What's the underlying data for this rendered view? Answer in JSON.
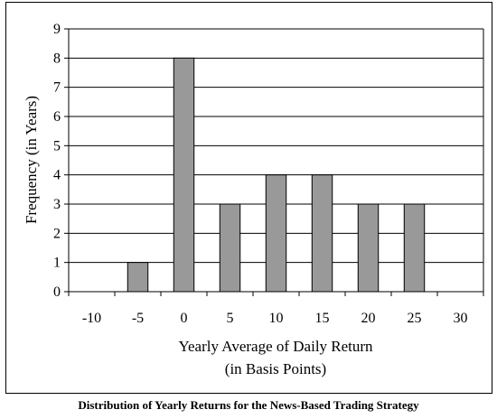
{
  "caption": "Distribution of Yearly Returns for the News-Based Trading Strategy",
  "chart_data": {
    "type": "bar",
    "categories": [
      "-10",
      "-5",
      "0",
      "5",
      "10",
      "15",
      "20",
      "25",
      "30"
    ],
    "values": [
      0,
      1,
      8,
      3,
      4,
      4,
      3,
      3,
      0
    ],
    "title": "",
    "xlabel": [
      "Yearly Average of Daily Return",
      "(in Basis Points)"
    ],
    "ylabel": "Frequency (in Years)",
    "ylim": [
      0,
      9
    ],
    "yticks": [
      "0",
      "1",
      "2",
      "3",
      "4",
      "5",
      "6",
      "7",
      "8",
      "9"
    ],
    "grid": true,
    "bar_color": "#999999",
    "plot_background": "#ffffff"
  }
}
